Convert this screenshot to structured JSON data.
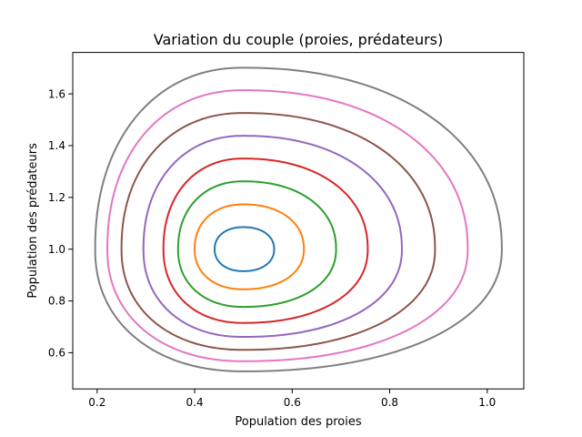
{
  "chart_data": {
    "type": "line",
    "title": "Variation du couple (proies, prédateurs)",
    "xlabel": "Population des proies",
    "ylabel": "Population des prédateurs",
    "xlim": [
      0.15,
      1.075
    ],
    "ylim": [
      0.46,
      1.76
    ],
    "xticks": [
      "0.2",
      "0.4",
      "0.6",
      "0.8",
      "1.0"
    ],
    "yticks": [
      "0.6",
      "0.8",
      "1.0",
      "1.2",
      "1.4",
      "1.6"
    ],
    "xtick_values": [
      0.2,
      0.4,
      0.6,
      0.8,
      1.0
    ],
    "ytick_values": [
      0.6,
      0.8,
      1.0,
      1.2,
      1.4,
      1.6
    ],
    "grid": false,
    "legend": "none",
    "equilibrium": [
      0.5,
      1.0
    ],
    "series": [
      {
        "color": "#1f77b4",
        "x_range": [
          0.441,
          0.563
        ],
        "y_range": [
          0.915,
          1.085
        ]
      },
      {
        "color": "#ff7f0e",
        "x_range": [
          0.4,
          0.624
        ],
        "y_range": [
          0.845,
          1.173
        ]
      },
      {
        "color": "#2ca02c",
        "x_range": [
          0.366,
          0.69
        ],
        "y_range": [
          0.777,
          1.262
        ]
      },
      {
        "color": "#d62728",
        "x_range": [
          0.336,
          0.755
        ],
        "y_range": [
          0.715,
          1.35
        ]
      },
      {
        "color": "#9467bd",
        "x_range": [
          0.295,
          0.825
        ],
        "y_range": [
          0.661,
          1.438
        ]
      },
      {
        "color": "#8c564b",
        "x_range": [
          0.25,
          0.893
        ],
        "y_range": [
          0.611,
          1.526
        ]
      },
      {
        "color": "#e377c2",
        "x_range": [
          0.221,
          0.96
        ],
        "y_range": [
          0.567,
          1.614
        ]
      },
      {
        "color": "#7f7f7f",
        "x_range": [
          0.196,
          1.03
        ],
        "y_range": [
          0.528,
          1.701
        ]
      }
    ]
  }
}
